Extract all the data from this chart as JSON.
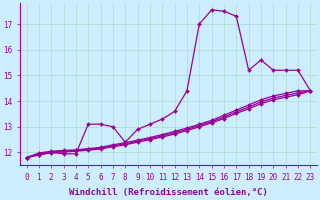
{
  "xlabel": "Windchill (Refroidissement éolien,°C)",
  "bg_color": "#cceeff",
  "line_color": "#990099",
  "grid_color": "#aaddcc",
  "x_data": [
    0,
    1,
    2,
    3,
    4,
    5,
    6,
    7,
    8,
    9,
    10,
    11,
    12,
    13,
    14,
    15,
    16,
    17,
    18,
    19,
    20,
    21,
    22,
    23
  ],
  "series_main": [
    11.8,
    11.9,
    12.0,
    11.95,
    11.95,
    13.1,
    13.1,
    13.0,
    12.4,
    12.9,
    13.1,
    13.3,
    13.6,
    14.4,
    17.0,
    17.55,
    17.5,
    17.3,
    15.2,
    15.6,
    15.2,
    15.2,
    15.2,
    14.4
  ],
  "series_lin1": [
    11.8,
    11.98,
    12.05,
    12.08,
    12.1,
    12.15,
    12.2,
    12.3,
    12.38,
    12.48,
    12.58,
    12.7,
    12.82,
    12.95,
    13.1,
    13.25,
    13.45,
    13.65,
    13.85,
    14.05,
    14.2,
    14.3,
    14.4,
    14.4
  ],
  "series_lin2": [
    11.8,
    11.95,
    12.02,
    12.05,
    12.08,
    12.12,
    12.17,
    12.26,
    12.34,
    12.44,
    12.54,
    12.65,
    12.77,
    12.9,
    13.05,
    13.2,
    13.38,
    13.58,
    13.77,
    13.97,
    14.12,
    14.22,
    14.32,
    14.4
  ],
  "series_lin3": [
    11.8,
    11.92,
    11.99,
    12.02,
    12.05,
    12.09,
    12.14,
    12.22,
    12.3,
    12.4,
    12.5,
    12.6,
    12.72,
    12.85,
    13.0,
    13.15,
    13.32,
    13.52,
    13.7,
    13.9,
    14.05,
    14.15,
    14.25,
    14.4
  ],
  "ylim": [
    11.5,
    17.8
  ],
  "xlim": [
    -0.5,
    23.5
  ],
  "yticks": [
    12,
    13,
    14,
    15,
    16,
    17
  ],
  "xticks": [
    0,
    1,
    2,
    3,
    4,
    5,
    6,
    7,
    8,
    9,
    10,
    11,
    12,
    13,
    14,
    15,
    16,
    17,
    18,
    19,
    20,
    21,
    22,
    23
  ],
  "marker": "D",
  "markersize": 2.0,
  "linewidth": 0.9,
  "tick_fontsize": 5.5,
  "xlabel_fontsize": 6.5
}
